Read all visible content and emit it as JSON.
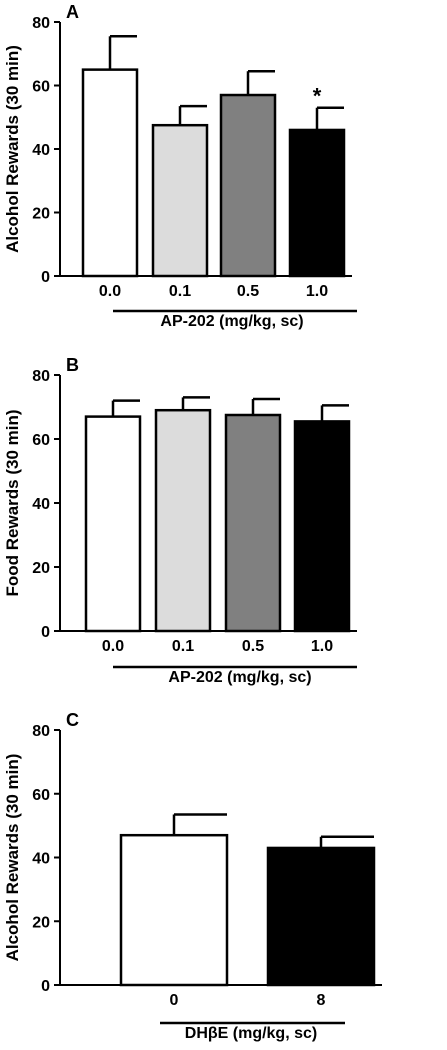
{
  "chart_data": [
    {
      "panel_label": "A",
      "type": "bar",
      "ylabel": "Alcohol Rewards (30 min)",
      "xlabel": "AP-202 (mg/kg, sc)",
      "ylim": [
        0,
        80
      ],
      "yticks": [
        0,
        20,
        40,
        60,
        80
      ],
      "categories": [
        "0.0",
        "0.1",
        "0.5",
        "1.0"
      ],
      "values": [
        65,
        47.5,
        57,
        46
      ],
      "errors": [
        10.5,
        6,
        7.5,
        7
      ],
      "fills": [
        "#ffffff",
        "#dcdcdc",
        "#808080",
        "#000000"
      ],
      "annotations": [
        "",
        "",
        "",
        "*"
      ]
    },
    {
      "panel_label": "B",
      "type": "bar",
      "ylabel": "Food Rewards (30 min)",
      "xlabel": "AP-202 (mg/kg, sc)",
      "ylim": [
        0,
        80
      ],
      "yticks": [
        0,
        20,
        40,
        60,
        80
      ],
      "categories": [
        "0.0",
        "0.1",
        "0.5",
        "1.0"
      ],
      "values": [
        67,
        69,
        67.5,
        65.5
      ],
      "errors": [
        5,
        4,
        5,
        5
      ],
      "fills": [
        "#ffffff",
        "#dcdcdc",
        "#808080",
        "#000000"
      ],
      "annotations": [
        "",
        "",
        "",
        ""
      ]
    },
    {
      "panel_label": "C",
      "type": "bar",
      "ylabel": "Alcohol Rewards (30 min)",
      "xlabel": "DHβE (mg/kg, sc)",
      "ylim": [
        0,
        80
      ],
      "yticks": [
        0,
        20,
        40,
        60,
        80
      ],
      "categories": [
        "0",
        "8"
      ],
      "values": [
        47,
        43
      ],
      "errors": [
        6.5,
        3.5
      ],
      "fills": [
        "#ffffff",
        "#000000"
      ],
      "annotations": [
        "",
        ""
      ]
    }
  ]
}
